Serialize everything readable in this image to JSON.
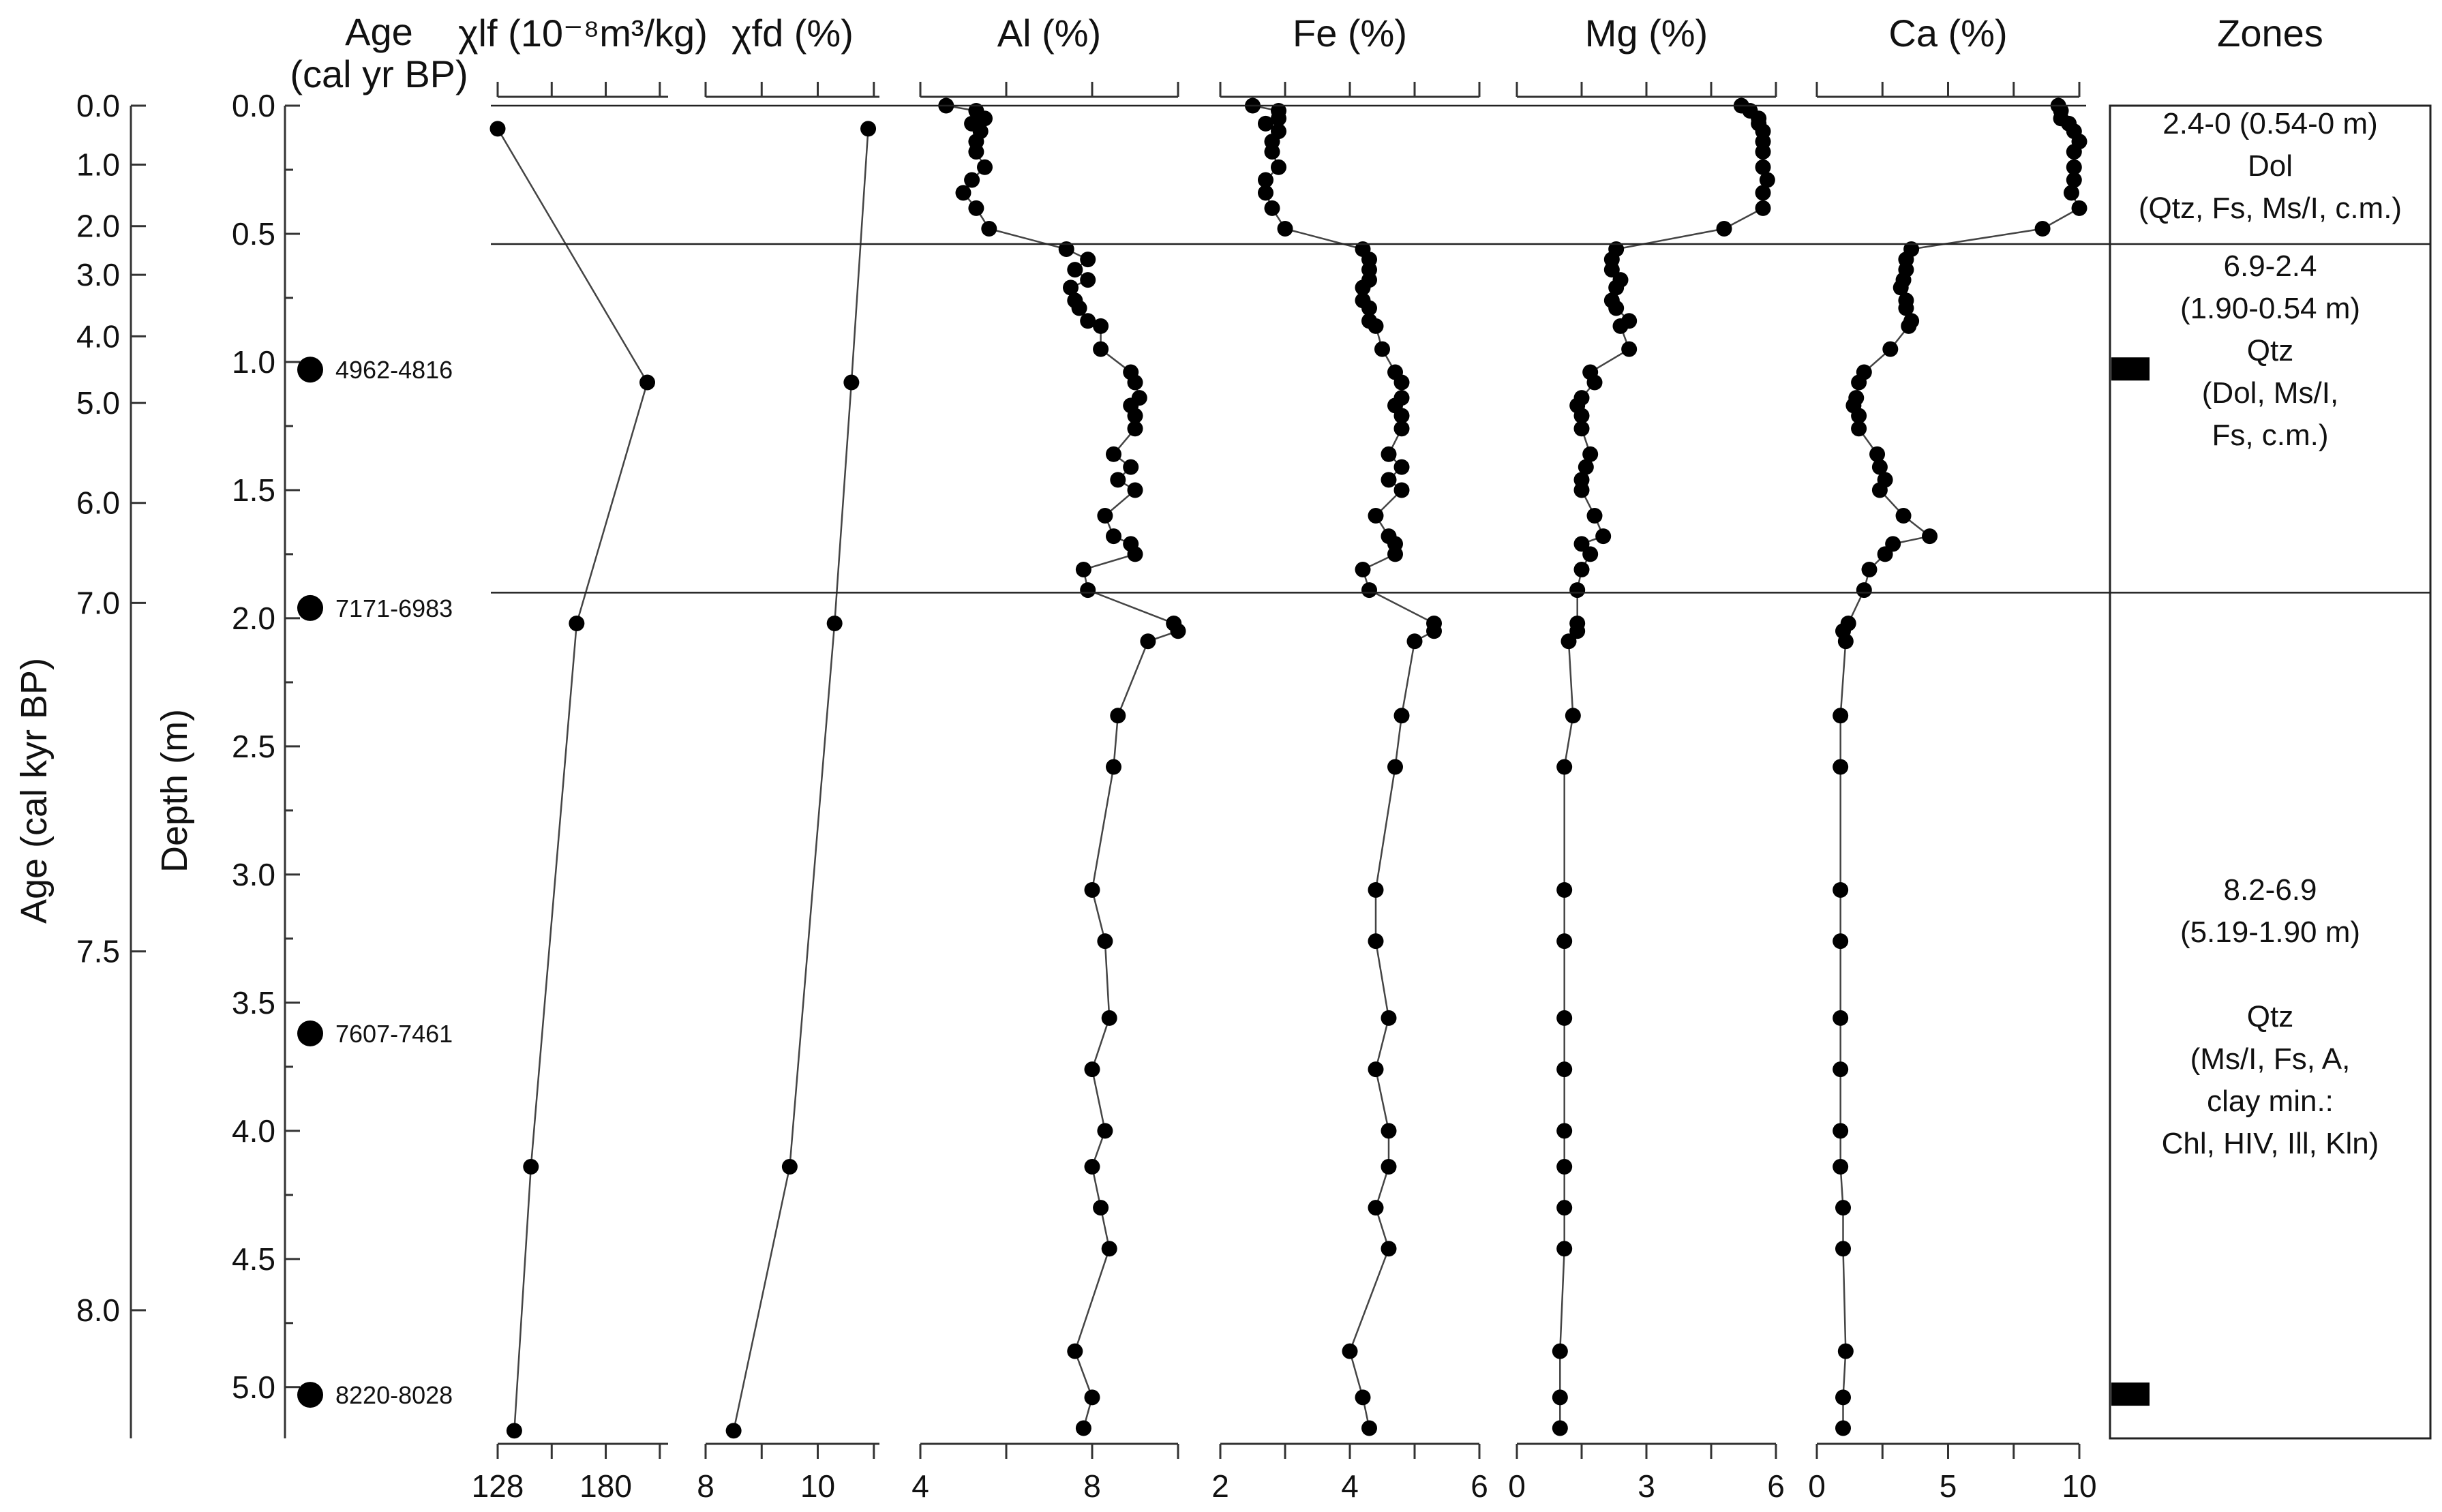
{
  "chart_data": {
    "type": "line",
    "description_axes": "depth profiles",
    "age_axis": {
      "label": "Age (cal kyr BP)",
      "ticks": [
        "0.0",
        "1.0",
        "2.0",
        "3.0",
        "4.0",
        "5.0",
        "6.0",
        "7.0",
        "7.5",
        "8.0"
      ],
      "tick_depths": [
        0.0,
        0.23,
        0.47,
        0.66,
        0.9,
        1.16,
        1.55,
        1.94,
        3.3,
        4.7
      ]
    },
    "age_header": [
      "Age",
      "(cal yr BP)"
    ],
    "depth_axis": {
      "label": "Depth (m)",
      "ticks": [
        "0.0",
        "0.5",
        "1.0",
        "1.5",
        "2.0",
        "2.5",
        "3.0",
        "3.5",
        "4.0",
        "4.5",
        "5.0"
      ],
      "tick_values": [
        0.0,
        0.5,
        1.0,
        1.5,
        2.0,
        2.5,
        3.0,
        3.5,
        4.0,
        4.5,
        5.0
      ],
      "range": [
        0,
        5.2
      ],
      "direction": "down"
    },
    "radiocarbon_dates": [
      {
        "label": "4962-4816",
        "depth": 1.03
      },
      {
        "label": "7171-6983",
        "depth": 1.96
      },
      {
        "label": "7607-7461",
        "depth": 3.62
      },
      {
        "label": "8220-8028",
        "depth": 5.03
      }
    ],
    "panels": [
      {
        "id": "xlf",
        "title": "χlf (10⁻⁸m³/kg)",
        "range": [
          128,
          210
        ],
        "tick_labels": [
          "128",
          "180"
        ],
        "tick_values": [
          128,
          180
        ],
        "minor_ticks": [
          128,
          154,
          180,
          206
        ],
        "depth": [
          0.09,
          1.08,
          2.02,
          4.14,
          5.17
        ],
        "values": [
          128,
          200,
          166,
          144,
          136
        ]
      },
      {
        "id": "xfd",
        "title": "χfd (%)",
        "range": [
          8,
          11.1
        ],
        "tick_labels": [
          "8",
          "10"
        ],
        "tick_values": [
          8,
          10
        ],
        "minor_ticks": [
          8,
          9,
          10,
          11
        ],
        "depth": [
          0.09,
          1.08,
          2.02,
          4.14,
          5.17
        ],
        "values": [
          10.9,
          10.6,
          10.3,
          9.5,
          8.5
        ]
      },
      {
        "id": "al",
        "title": "Al (%)",
        "range": [
          4,
          10
        ],
        "tick_labels": [
          "4",
          "8"
        ],
        "tick_values": [
          4,
          8
        ],
        "minor_ticks": [
          4,
          6,
          8,
          10
        ],
        "depth": [
          0.0,
          0.02,
          0.05,
          0.07,
          0.1,
          0.14,
          0.18,
          0.24,
          0.29,
          0.34,
          0.4,
          0.48,
          0.56,
          0.6,
          0.64,
          0.68,
          0.71,
          0.76,
          0.79,
          0.84,
          0.86,
          0.95,
          1.04,
          1.08,
          1.14,
          1.17,
          1.21,
          1.26,
          1.36,
          1.41,
          1.46,
          1.5,
          1.6,
          1.68,
          1.71,
          1.75,
          1.81,
          1.89,
          2.02,
          2.05,
          2.09,
          2.38,
          2.58,
          3.06,
          3.26,
          3.56,
          3.76,
          4.0,
          4.14,
          4.3,
          4.46,
          4.86,
          5.04,
          5.16
        ],
        "values": [
          4.6,
          5.3,
          5.5,
          5.2,
          5.4,
          5.3,
          5.3,
          5.5,
          5.2,
          5.0,
          5.3,
          5.6,
          7.4,
          7.9,
          7.6,
          7.9,
          7.5,
          7.6,
          7.7,
          7.9,
          8.2,
          8.2,
          8.9,
          9.0,
          9.1,
          8.9,
          9.0,
          9.0,
          8.5,
          8.9,
          8.6,
          9.0,
          8.3,
          8.5,
          8.9,
          9.0,
          7.8,
          7.9,
          9.9,
          10.0,
          9.3,
          8.6,
          8.5,
          8.0,
          8.3,
          8.4,
          8.0,
          8.3,
          8.0,
          8.2,
          8.4,
          7.6,
          8.0,
          7.8
        ]
      },
      {
        "id": "fe",
        "title": "Fe (%)",
        "range": [
          2,
          6
        ],
        "tick_labels": [
          "2",
          "4",
          "6"
        ],
        "tick_values": [
          2,
          4,
          6
        ],
        "minor_ticks": [
          2,
          3,
          4,
          5,
          6
        ],
        "depth": [
          0.0,
          0.02,
          0.05,
          0.07,
          0.1,
          0.14,
          0.18,
          0.24,
          0.29,
          0.34,
          0.4,
          0.48,
          0.56,
          0.6,
          0.64,
          0.68,
          0.71,
          0.76,
          0.79,
          0.84,
          0.86,
          0.95,
          1.04,
          1.08,
          1.14,
          1.17,
          1.21,
          1.26,
          1.36,
          1.41,
          1.46,
          1.5,
          1.6,
          1.68,
          1.71,
          1.75,
          1.81,
          1.89,
          2.02,
          2.05,
          2.09,
          2.38,
          2.58,
          3.06,
          3.26,
          3.56,
          3.76,
          4.0,
          4.14,
          4.3,
          4.46,
          4.86,
          5.04,
          5.16
        ],
        "values": [
          2.5,
          2.9,
          2.9,
          2.7,
          2.9,
          2.8,
          2.8,
          2.9,
          2.7,
          2.7,
          2.8,
          3.0,
          4.2,
          4.3,
          4.3,
          4.3,
          4.2,
          4.2,
          4.3,
          4.3,
          4.4,
          4.5,
          4.7,
          4.8,
          4.8,
          4.7,
          4.8,
          4.8,
          4.6,
          4.8,
          4.6,
          4.8,
          4.4,
          4.6,
          4.7,
          4.7,
          4.2,
          4.3,
          5.3,
          5.3,
          5.0,
          4.8,
          4.7,
          4.4,
          4.4,
          4.6,
          4.4,
          4.6,
          4.6,
          4.4,
          4.6,
          4.0,
          4.2,
          4.3
        ]
      },
      {
        "id": "mg",
        "title": "Mg (%)",
        "range": [
          0,
          6
        ],
        "tick_labels": [
          "0",
          "3",
          "6"
        ],
        "tick_values": [
          0,
          3,
          6
        ],
        "minor_ticks": [
          0,
          1.5,
          3,
          4.5,
          6
        ],
        "depth": [
          0.0,
          0.02,
          0.05,
          0.07,
          0.1,
          0.14,
          0.18,
          0.24,
          0.29,
          0.34,
          0.4,
          0.48,
          0.56,
          0.6,
          0.64,
          0.68,
          0.71,
          0.76,
          0.79,
          0.84,
          0.86,
          0.95,
          1.04,
          1.08,
          1.14,
          1.17,
          1.21,
          1.26,
          1.36,
          1.41,
          1.46,
          1.5,
          1.6,
          1.68,
          1.71,
          1.75,
          1.81,
          1.89,
          2.02,
          2.05,
          2.09,
          2.38,
          2.58,
          3.06,
          3.26,
          3.56,
          3.76,
          4.0,
          4.14,
          4.3,
          4.46,
          4.86,
          5.04,
          5.16
        ],
        "values": [
          5.2,
          5.4,
          5.6,
          5.6,
          5.7,
          5.7,
          5.7,
          5.7,
          5.8,
          5.7,
          5.7,
          4.8,
          2.3,
          2.2,
          2.2,
          2.4,
          2.3,
          2.2,
          2.3,
          2.6,
          2.4,
          2.6,
          1.7,
          1.8,
          1.5,
          1.4,
          1.5,
          1.5,
          1.7,
          1.6,
          1.5,
          1.5,
          1.8,
          2.0,
          1.5,
          1.7,
          1.5,
          1.4,
          1.4,
          1.4,
          1.2,
          1.3,
          1.1,
          1.1,
          1.1,
          1.1,
          1.1,
          1.1,
          1.1,
          1.1,
          1.1,
          1.0,
          1.0,
          1.0
        ]
      },
      {
        "id": "ca",
        "title": "Ca (%)",
        "range": [
          0,
          10
        ],
        "tick_labels": [
          "0",
          "5",
          "10"
        ],
        "tick_values": [
          0,
          5,
          10
        ],
        "minor_ticks": [
          0,
          2.5,
          5,
          7.5,
          10
        ],
        "depth": [
          0.0,
          0.02,
          0.05,
          0.07,
          0.1,
          0.14,
          0.18,
          0.24,
          0.29,
          0.34,
          0.4,
          0.48,
          0.56,
          0.6,
          0.64,
          0.68,
          0.71,
          0.76,
          0.79,
          0.84,
          0.86,
          0.95,
          1.04,
          1.08,
          1.14,
          1.17,
          1.21,
          1.26,
          1.36,
          1.41,
          1.46,
          1.5,
          1.6,
          1.68,
          1.71,
          1.75,
          1.81,
          1.89,
          2.02,
          2.05,
          2.09,
          2.38,
          2.58,
          3.06,
          3.26,
          3.56,
          3.76,
          4.0,
          4.14,
          4.3,
          4.46,
          4.86,
          5.04,
          5.16
        ],
        "values": [
          9.2,
          9.3,
          9.3,
          9.6,
          9.8,
          10.0,
          9.8,
          9.8,
          9.8,
          9.7,
          10.0,
          8.6,
          3.6,
          3.4,
          3.4,
          3.3,
          3.2,
          3.4,
          3.4,
          3.6,
          3.5,
          2.8,
          1.8,
          1.6,
          1.5,
          1.4,
          1.6,
          1.6,
          2.3,
          2.4,
          2.6,
          2.4,
          3.3,
          4.3,
          2.9,
          2.6,
          2.0,
          1.8,
          1.2,
          1.0,
          1.1,
          0.9,
          0.9,
          0.9,
          0.9,
          0.9,
          0.9,
          0.9,
          0.9,
          1.0,
          1.0,
          1.1,
          1.0,
          1.0
        ]
      }
    ],
    "zone_boundaries": [
      0.54,
      1.9
    ],
    "zones_title": "Zones",
    "zones": [
      {
        "lines": [
          "2.4-0 (0.54-0 m)",
          "Dol",
          "(Qtz, Fs, Ms/I, c.m.)"
        ],
        "top": 0.0,
        "bottom": 0.54
      },
      {
        "lines": [
          "6.9-2.4",
          "(1.90-0.54 m)",
          "Qtz",
          "(Dol, Ms/I,",
          "Fs, c.m.)"
        ],
        "top": 0.54,
        "bottom": 1.9
      },
      {
        "lines": [
          "8.2-6.9",
          "(5.19-1.90 m)",
          "",
          "Qtz",
          "(Ms/I, Fs, A,",
          "clay min.:",
          "Chl, HIV, Ill, Kln)"
        ],
        "top": 1.9,
        "bottom": 5.2
      }
    ],
    "zone_markers_depth": [
      1.03,
      5.03
    ],
    "grid": false
  }
}
